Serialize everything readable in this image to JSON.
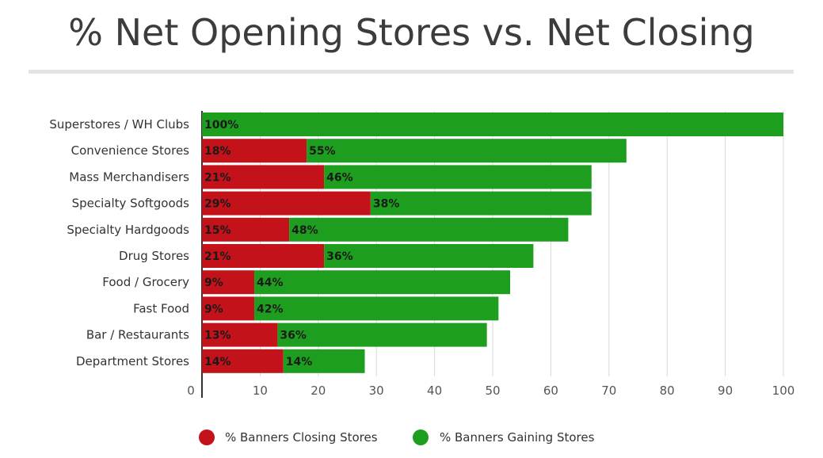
{
  "chart_data": {
    "type": "bar",
    "orientation": "horizontal",
    "stacked": true,
    "title": "% Net Opening Stores vs. Net Closing",
    "categories": [
      "Superstores / WH Clubs",
      "Convenience Stores",
      "Mass Merchandisers",
      "Specialty Softgoods",
      "Specialty Hardgoods",
      "Drug Stores",
      "Food / Grocery",
      "Fast Food",
      "Bar / Restaurants",
      "Department Stores"
    ],
    "series": [
      {
        "name": "% Banners Closing Stores",
        "color": "#c4121a",
        "values": [
          0,
          18,
          21,
          29,
          15,
          21,
          9,
          9,
          13,
          14
        ],
        "labels": [
          "",
          "18%",
          "21%",
          "29%",
          "15%",
          "21%",
          "9%",
          "9%",
          "13%",
          "14%"
        ]
      },
      {
        "name": "% Banners Gaining Stores",
        "color": "#1e9e1e",
        "values": [
          100,
          55,
          46,
          38,
          48,
          36,
          44,
          42,
          36,
          14
        ],
        "labels": [
          "100%",
          "55%",
          "46%",
          "38%",
          "48%",
          "36%",
          "44%",
          "42%",
          "36%",
          "14%"
        ]
      }
    ],
    "xlim": [
      0,
      100
    ],
    "xticks": [
      "0",
      "10",
      "20",
      "30",
      "40",
      "50",
      "60",
      "70",
      "80",
      "90",
      "100"
    ],
    "grid": true,
    "legend_position": "bottom"
  }
}
